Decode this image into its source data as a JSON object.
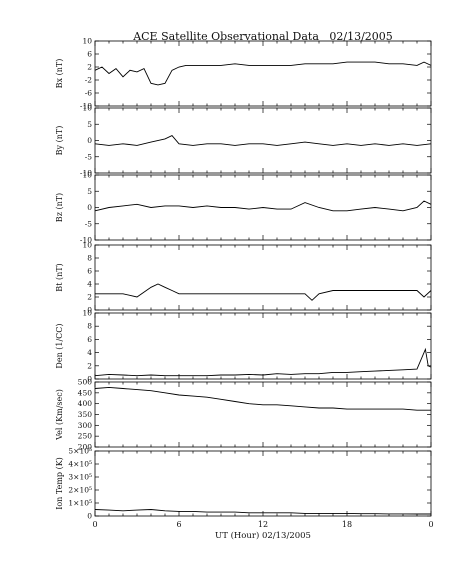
{
  "chart_data": {
    "title": "ACE Satellite Observational Data   02/13/2005",
    "xlabel": "UT (Hour)   02/13/2005",
    "x_ticks": [
      "0",
      "6",
      "12",
      "18",
      "0"
    ],
    "x_range_hours": [
      0,
      24
    ],
    "grid": false,
    "panels": [
      {
        "type": "line",
        "ylabel": "Bx (nT)",
        "ylim": [
          -10,
          10
        ],
        "y_ticks": [
          "10",
          "6",
          "2",
          "-2",
          "-6",
          "-10"
        ],
        "series": [
          {
            "x": [
              0,
              0.5,
              1,
              1.5,
              2,
              2.5,
              3,
              3.5,
              4,
              4.5,
              5,
              5.5,
              6,
              6.5,
              7,
              8,
              9,
              10,
              11,
              12,
              13,
              14,
              15,
              16,
              17,
              18,
              19,
              20,
              21,
              22,
              23,
              23.5,
              24
            ],
            "values": [
              1,
              2,
              0,
              1.5,
              -1,
              1,
              0.5,
              1.5,
              -3,
              -3.5,
              -3,
              1,
              2,
              2.5,
              2.5,
              2.5,
              2.5,
              3,
              2.5,
              2.5,
              2.5,
              2.5,
              3,
              3,
              3,
              3.5,
              3.5,
              3.5,
              3,
              3,
              2.5,
              3.5,
              2.5
            ]
          }
        ]
      },
      {
        "type": "line",
        "ylabel": "By (nT)",
        "ylim": [
          -10,
          10
        ],
        "y_ticks": [
          "10",
          "5",
          "0",
          "-5",
          "-10"
        ],
        "series": [
          {
            "x": [
              0,
              1,
              2,
              3,
              4,
              5,
              5.5,
              6,
              7,
              8,
              9,
              10,
              11,
              12,
              13,
              14,
              15,
              16,
              17,
              18,
              19,
              20,
              21,
              22,
              23,
              24
            ],
            "values": [
              -1,
              -1.5,
              -1,
              -1.5,
              -0.5,
              0.5,
              1.5,
              -1,
              -1.5,
              -1,
              -1,
              -1.5,
              -1,
              -1,
              -1.5,
              -1,
              -0.5,
              -1,
              -1.5,
              -1,
              -1.5,
              -1,
              -1.5,
              -1,
              -1.5,
              -1
            ]
          }
        ]
      },
      {
        "type": "line",
        "ylabel": "Bz (nT)",
        "ylim": [
          -10,
          10
        ],
        "y_ticks": [
          "10",
          "5",
          "0",
          "-5",
          "-10"
        ],
        "series": [
          {
            "x": [
              0,
              1,
              2,
              3,
              4,
              5,
              6,
              7,
              8,
              9,
              10,
              11,
              12,
              13,
              14,
              15,
              16,
              17,
              18,
              19,
              20,
              21,
              22,
              23,
              23.5,
              24
            ],
            "values": [
              -1,
              0,
              0.5,
              1,
              0,
              0.5,
              0.5,
              0,
              0.5,
              0,
              0,
              -0.5,
              0,
              -0.5,
              -0.5,
              1.5,
              0,
              -1,
              -1,
              -0.5,
              0,
              -0.5,
              -1,
              0,
              2,
              1
            ]
          }
        ]
      },
      {
        "type": "line",
        "ylabel": "Bt (nT)",
        "ylim": [
          0,
          10
        ],
        "y_ticks": [
          "10",
          "8",
          "6",
          "4",
          "2",
          "0"
        ],
        "series": [
          {
            "x": [
              0,
              1,
              2,
              3,
              4,
              4.5,
              5,
              5.5,
              6,
              7,
              8,
              9,
              10,
              11,
              12,
              13,
              14,
              15,
              15.5,
              16,
              17,
              18,
              19,
              20,
              21,
              22,
              23,
              23.5,
              24
            ],
            "values": [
              2.5,
              2.5,
              2.5,
              2,
              3.5,
              4,
              3.5,
              3,
              2.5,
              2.5,
              2.5,
              2.5,
              2.5,
              2.5,
              2.5,
              2.5,
              2.5,
              2.5,
              1.5,
              2.5,
              3,
              3,
              3,
              3,
              3,
              3,
              3,
              2,
              3
            ]
          }
        ]
      },
      {
        "type": "line",
        "ylabel": "Den (1/CC)",
        "ylim": [
          0,
          10
        ],
        "y_ticks": [
          "10",
          "8",
          "6",
          "4",
          "2",
          "0"
        ],
        "series": [
          {
            "x": [
              0,
              1,
              2,
              3,
              4,
              5,
              6,
              7,
              8,
              9,
              10,
              11,
              12,
              13,
              14,
              15,
              16,
              17,
              18,
              19,
              20,
              21,
              22,
              23,
              23.6,
              23.8,
              24
            ],
            "values": [
              0.5,
              0.7,
              0.6,
              0.5,
              0.6,
              0.5,
              0.5,
              0.5,
              0.5,
              0.6,
              0.6,
              0.7,
              0.6,
              0.8,
              0.7,
              0.8,
              0.8,
              1,
              1,
              1.1,
              1.2,
              1.3,
              1.4,
              1.5,
              4.5,
              2,
              1.8
            ]
          }
        ]
      },
      {
        "type": "line",
        "ylabel": "Vel (Km/sec)",
        "ylim": [
          200,
          500
        ],
        "y_ticks": [
          "500",
          "450",
          "400",
          "350",
          "300",
          "250",
          "200"
        ],
        "series": [
          {
            "x": [
              0,
              1,
              2,
              3,
              4,
              5,
              6,
              7,
              8,
              9,
              10,
              11,
              12,
              13,
              14,
              15,
              16,
              17,
              18,
              19,
              20,
              21,
              22,
              23,
              24
            ],
            "values": [
              470,
              475,
              470,
              465,
              460,
              450,
              440,
              435,
              430,
              420,
              410,
              400,
              395,
              395,
              390,
              385,
              380,
              380,
              375,
              375,
              375,
              375,
              375,
              370,
              370
            ]
          }
        ]
      },
      {
        "type": "line",
        "ylabel": "Ion Temp (K)",
        "ylim": [
          0,
          500000
        ],
        "y_ticks": [
          "5×10⁵",
          "4×10⁵",
          "3×10⁵",
          "2×10⁵",
          "1×10⁵",
          "0"
        ],
        "series": [
          {
            "x": [
              0,
              1,
              2,
              3,
              4,
              5,
              6,
              7,
              8,
              9,
              10,
              11,
              12,
              13,
              14,
              15,
              16,
              17,
              18,
              19,
              20,
              21,
              22,
              23,
              24
            ],
            "values": [
              50000,
              45000,
              40000,
              45000,
              50000,
              40000,
              35000,
              35000,
              30000,
              30000,
              30000,
              25000,
              25000,
              25000,
              25000,
              20000,
              20000,
              20000,
              20000,
              18000,
              18000,
              16000,
              16000,
              15000,
              15000
            ]
          }
        ]
      }
    ]
  }
}
